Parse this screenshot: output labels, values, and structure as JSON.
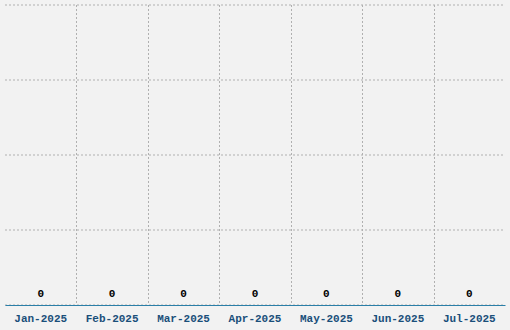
{
  "chart_data": {
    "type": "bar",
    "categories": [
      "Jan-2025",
      "Feb-2025",
      "Mar-2025",
      "Apr-2025",
      "May-2025",
      "Jun-2025",
      "Jul-2025"
    ],
    "values": [
      0,
      0,
      0,
      0,
      0,
      0,
      0
    ],
    "color": "#1f5f8b",
    "ylim": [
      0,
      4
    ],
    "yticks": [
      0,
      1,
      2,
      3,
      4
    ],
    "grid": true,
    "data_labels": true,
    "tick_labels": "x"
  }
}
